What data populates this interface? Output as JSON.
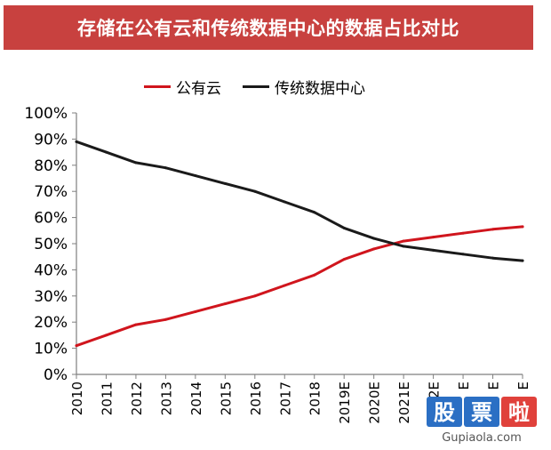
{
  "title": "存储在公有云和传统数据中心的数据占比对比",
  "colors": {
    "banner": "#c8413f",
    "public_cloud": "#d0151d",
    "traditional": "#1a1a1a"
  },
  "chart_data": {
    "type": "line",
    "title": "存储在公有云和传统数据中心的数据占比对比",
    "categories": [
      "2010",
      "2011",
      "2012",
      "2013",
      "2014",
      "2015",
      "2016",
      "2017",
      "2018",
      "2019E",
      "2020E",
      "2021E",
      "2022E",
      "E",
      "E",
      "E"
    ],
    "series": [
      {
        "name": "公有云",
        "color": "#d0151d",
        "values": [
          11,
          15,
          19,
          21,
          24,
          27,
          30,
          34,
          38,
          44,
          48,
          51,
          52.5,
          54,
          55.5,
          56.5
        ]
      },
      {
        "name": "传统数据中心",
        "color": "#1a1a1a",
        "values": [
          89,
          85,
          81,
          79,
          76,
          73,
          70,
          66,
          62,
          56,
          52,
          49,
          47.5,
          46,
          44.5,
          43.5
        ]
      }
    ],
    "yticks": [
      "0%",
      "10%",
      "20%",
      "30%",
      "40%",
      "50%",
      "60%",
      "70%",
      "80%",
      "90%",
      "100%"
    ],
    "ylim": [
      0,
      100
    ],
    "legend_position": "top",
    "grid": false
  },
  "watermark": {
    "chars": [
      "股",
      "票",
      "啦"
    ],
    "domain": "Gupiaola.com"
  }
}
